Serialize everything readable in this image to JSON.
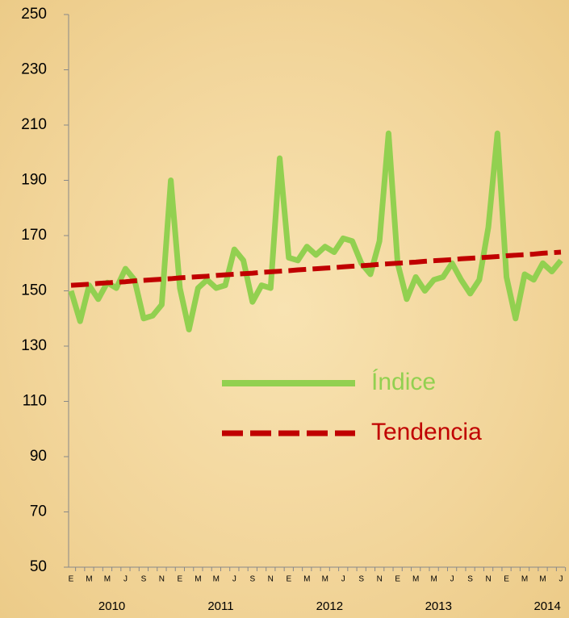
{
  "chart_data": {
    "type": "line",
    "categories": [
      "E",
      null,
      "M",
      null,
      "M",
      null,
      "J",
      null,
      "S",
      null,
      "N",
      null,
      "E",
      null,
      "M",
      null,
      "M",
      null,
      "J",
      null,
      "S",
      null,
      "N",
      null,
      "E",
      null,
      "M",
      null,
      "M",
      null,
      "J",
      null,
      "S",
      null,
      "N",
      null,
      "E",
      null,
      "M",
      null,
      "M",
      null,
      "J",
      null,
      "S",
      null,
      "N",
      null,
      "E",
      null,
      "M",
      null,
      "M",
      null,
      "J"
    ],
    "x_groups": [
      "2010",
      "2011",
      "2012",
      "2013",
      "2014"
    ],
    "series": [
      {
        "name": "Índice",
        "color": "#92d050",
        "dash": false,
        "values": [
          150,
          139,
          152,
          147,
          153,
          151,
          158,
          154,
          140,
          141,
          145,
          190,
          151,
          136,
          151,
          154,
          151,
          152,
          165,
          161,
          146,
          152,
          151,
          198,
          162,
          161,
          166,
          163,
          166,
          164,
          169,
          168,
          160,
          156,
          168,
          207,
          160,
          147,
          155,
          150,
          154,
          155,
          160,
          154,
          149,
          154,
          173,
          207,
          155,
          140,
          156,
          154,
          160,
          157,
          161
        ]
      },
      {
        "name": "Tendencia",
        "color": "#c00000",
        "dash": true,
        "values": [
          152.0,
          152.2,
          152.4,
          152.7,
          152.9,
          153.1,
          153.3,
          153.6,
          153.8,
          154.0,
          154.2,
          154.4,
          154.7,
          154.9,
          155.1,
          155.3,
          155.6,
          155.8,
          156.0,
          156.2,
          156.4,
          156.7,
          156.9,
          157.1,
          157.3,
          157.6,
          157.8,
          158.0,
          158.2,
          158.4,
          158.7,
          158.9,
          159.1,
          159.3,
          159.6,
          159.8,
          160.0,
          160.2,
          160.4,
          160.7,
          160.9,
          161.1,
          161.3,
          161.6,
          161.8,
          162.0,
          162.2,
          162.4,
          162.7,
          162.9,
          163.1,
          163.3,
          163.6,
          163.8,
          164.0
        ]
      }
    ],
    "ylim": [
      50,
      250
    ],
    "yticks": [
      50,
      70,
      90,
      110,
      130,
      150,
      170,
      190,
      210,
      230,
      250
    ],
    "grid": false
  }
}
